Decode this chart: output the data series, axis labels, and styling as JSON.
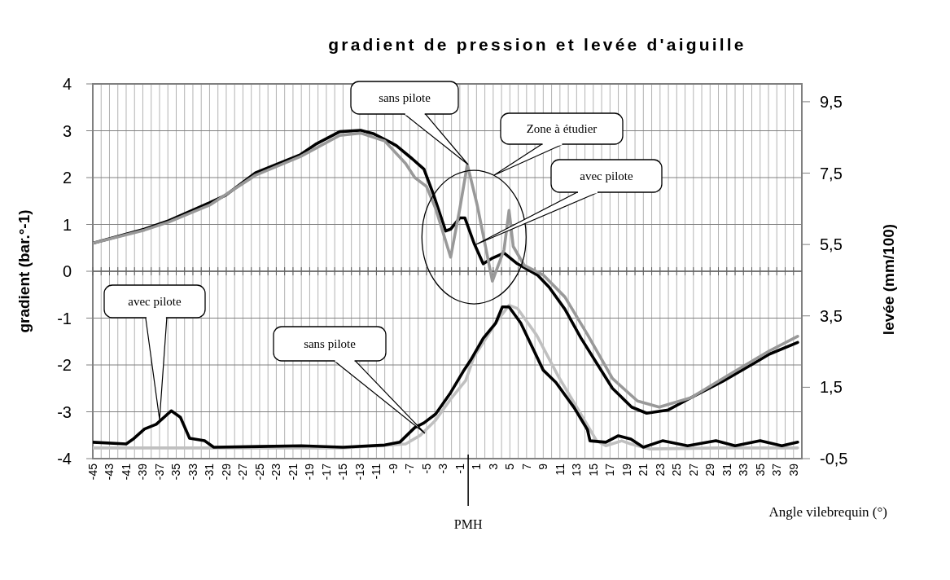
{
  "chart_data": {
    "type": "line",
    "title": "gradient de pression et levée d'aiguille",
    "xlabel": "Angle vilebrequin (°)",
    "ylabel": "gradient (bar.°-1)",
    "y2label": "levée (mm/100)",
    "xlim": [
      -45,
      40
    ],
    "xticks": [
      -45,
      {
        "value": -44,
        "label": null
      },
      -43,
      {
        "value": -42,
        "label": null
      },
      -41,
      {
        "value": -40,
        "label": null
      },
      -39,
      {
        "value": -38,
        "label": null
      },
      -37,
      {
        "value": -36,
        "label": null
      },
      -35,
      {
        "value": -34,
        "label": null
      },
      -33,
      {
        "value": -32,
        "label": null
      },
      -31,
      {
        "value": -30,
        "label": null
      },
      -29,
      {
        "value": -28,
        "label": null
      },
      -27,
      {
        "value": -26,
        "label": null
      },
      -25,
      {
        "value": -24,
        "label": null
      },
      -23,
      {
        "value": -22,
        "label": null
      },
      -21,
      {
        "value": -20,
        "label": null
      },
      -19,
      {
        "value": -18,
        "label": null
      },
      -17,
      {
        "value": -16,
        "label": null
      },
      -15,
      {
        "value": -14,
        "label": null
      },
      -13,
      {
        "value": -12,
        "label": null
      },
      -11,
      {
        "value": -10,
        "label": null
      },
      -9,
      {
        "value": -8,
        "label": null
      },
      -7,
      {
        "value": -6,
        "label": null
      },
      -5,
      {
        "value": -4,
        "label": null
      },
      -3,
      {
        "value": -2,
        "label": null
      },
      -1,
      {
        "value": 0,
        "label": null
      },
      1,
      {
        "value": 2,
        "label": null
      },
      3,
      {
        "value": 4,
        "label": null
      },
      5,
      {
        "value": 6,
        "label": null
      },
      7,
      {
        "value": 8,
        "label": null
      },
      9,
      {
        "value": 10,
        "label": null
      },
      11,
      {
        "value": 12,
        "label": null
      },
      13,
      {
        "value": 14,
        "label": null
      },
      15,
      {
        "value": 16,
        "label": null
      },
      17,
      {
        "value": 18,
        "label": null
      },
      19,
      {
        "value": 20,
        "label": null
      },
      21,
      {
        "value": 22,
        "label": null
      },
      23,
      {
        "value": 24,
        "label": null
      },
      25,
      {
        "value": 26,
        "label": null
      },
      27,
      {
        "value": 28,
        "label": null
      },
      29,
      {
        "value": 30,
        "label": null
      },
      31,
      {
        "value": 32,
        "label": null
      },
      33,
      {
        "value": 34,
        "label": null
      },
      35,
      {
        "value": 36,
        "label": null
      },
      37,
      {
        "value": 38,
        "label": null
      },
      39
    ],
    "ylim": [
      -4,
      4
    ],
    "yticks": [
      -4,
      -3,
      -2,
      -1,
      0,
      1,
      2,
      3,
      4
    ],
    "y2lim": [
      -0.5,
      10
    ],
    "y2ticks": [
      {
        "value": -0.5,
        "label": "-0,5"
      },
      {
        "value": 1.5,
        "label": "1,5"
      },
      {
        "value": 3.5,
        "label": "3,5"
      },
      {
        "value": 5.5,
        "label": "5,5"
      },
      {
        "value": 7.5,
        "label": "7,5"
      },
      {
        "value": 9.5,
        "label": "9,5"
      }
    ],
    "grid": true,
    "line_style": "solid",
    "series": [
      {
        "color": "#000000",
        "x": [
          -45,
          -38.8,
          -35.9,
          -30.9,
          -29.1,
          -25.5,
          -20.1,
          -18.3,
          -15.4,
          -12.9,
          -11.4,
          -9.3,
          -8.6,
          -6.7,
          -5.3,
          -4.2,
          -2.7,
          -2.1,
          -1,
          -0.4,
          0.7,
          1.8,
          2.8,
          4.3,
          5.9,
          8.3,
          9.7,
          11.6,
          13.5,
          15.4,
          17.3,
          19.6,
          21.4,
          24,
          26.7,
          30.5,
          34.3,
          36.1,
          39.5
        ],
        "values": [
          0.6,
          0.9,
          1.08,
          1.47,
          1.62,
          2.1,
          2.49,
          2.71,
          2.98,
          3.01,
          2.94,
          2.75,
          2.68,
          2.4,
          2.18,
          1.66,
          0.86,
          0.9,
          1.14,
          1.14,
          0.6,
          0.16,
          0.27,
          0.39,
          0.16,
          -0.08,
          -0.34,
          -0.81,
          -1.42,
          -1.96,
          -2.5,
          -2.9,
          -3.03,
          -2.96,
          -2.7,
          -2.35,
          -1.96,
          -1.77,
          -1.52
        ]
      },
      {
        "color": "#999999",
        "x": [
          -45,
          -38.8,
          -35.9,
          -30.9,
          -25.5,
          -20.1,
          -15.4,
          -12.9,
          -10,
          -7.5,
          -6.4,
          -5,
          -3.9,
          -2.1,
          -1,
          -0.1,
          1.1,
          2.9,
          4.3,
          4.9,
          5.4,
          6.7,
          9,
          11.6,
          14.3,
          17.3,
          20.3,
          22.9,
          26.7,
          32.3,
          36.1,
          39.5
        ],
        "values": [
          0.6,
          0.88,
          1.05,
          1.42,
          2.05,
          2.45,
          2.9,
          2.95,
          2.78,
          2.3,
          2.0,
          1.81,
          1.34,
          0.3,
          1.34,
          2.28,
          1.4,
          -0.21,
          0.46,
          1.3,
          0.53,
          0.13,
          -0.08,
          -0.55,
          -1.35,
          -2.29,
          -2.77,
          -2.9,
          -2.7,
          -2.1,
          -1.7,
          -1.39
        ]
      },
      {
        "color": "#c0c0c0",
        "axis": "y2",
        "x": [
          -45,
          -30,
          -15,
          -7.5,
          -5.7,
          -3.9,
          -2.1,
          -0.3,
          0.7,
          3.3,
          4.9,
          5.9,
          8.2,
          10.8,
          13.5,
          15.4,
          16.5,
          18.4,
          19.5,
          21.8,
          30,
          39.5
        ],
        "values": [
          -0.2,
          -0.2,
          -0.2,
          -0.09,
          0.16,
          0.58,
          1.17,
          1.69,
          2.35,
          3.3,
          3.8,
          3.71,
          2.96,
          1.81,
          0.75,
          0,
          -0.14,
          0,
          -0.09,
          -0.23,
          -0.2,
          -0.2
        ]
      },
      {
        "color": "#000000",
        "axis": "y2",
        "x": [
          -45,
          -41,
          -40.2,
          -38.8,
          -37.4,
          -35.6,
          -34.5,
          -33.4,
          -31.6,
          -30.5,
          -25,
          -20,
          -15,
          -10,
          -8.2,
          -6.4,
          -5.3,
          -3.9,
          -2.1,
          -0.6,
          0.3,
          1.8,
          3.3,
          4.1,
          4.9,
          6.3,
          9,
          10.5,
          12.7,
          14.3,
          14.6,
          16.5,
          18,
          19.5,
          21,
          23.3,
          26.3,
          29.7,
          32,
          35,
          37.6,
          39.5
        ],
        "values": [
          -0.04,
          -0.09,
          0.04,
          0.33,
          0.46,
          0.84,
          0.66,
          0.07,
          0,
          -0.18,
          -0.16,
          -0.14,
          -0.18,
          -0.12,
          -0.04,
          0.37,
          0.5,
          0.75,
          1.35,
          1.94,
          2.26,
          2.87,
          3.3,
          3.75,
          3.75,
          3.3,
          1.98,
          1.64,
          0.93,
          0.31,
          0,
          -0.04,
          0.14,
          0.05,
          -0.18,
          0,
          -0.14,
          0,
          -0.14,
          0,
          -0.14,
          -0.04
        ]
      }
    ],
    "ref_lines": [
      {
        "axis": "x",
        "value": 0,
        "label": "PMH"
      }
    ],
    "annotations": [
      "sans pilote",
      "Zone à étudier",
      "avec pilote",
      "avec pilote",
      "sans pilote"
    ]
  }
}
